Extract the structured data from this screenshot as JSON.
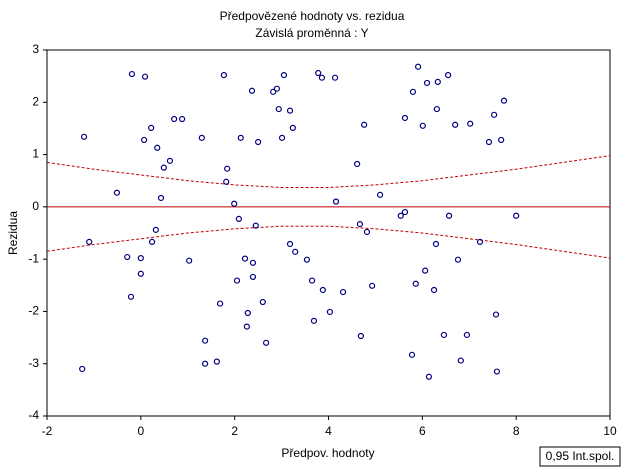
{
  "chart_data": {
    "type": "scatter",
    "title": "Předpovězené hodnoty vs. rezidua",
    "subtitle": "Závislá proměnná :  Y",
    "x_label": "Předpov. hodnoty",
    "y_label": "Rezidua",
    "xlim": [
      -2,
      10
    ],
    "xticks": [
      -2,
      0,
      2,
      4,
      6,
      8,
      10
    ],
    "ylim": [
      -4,
      3
    ],
    "yticks": [
      -4,
      -3,
      -2,
      -1,
      0,
      1,
      2,
      3
    ],
    "color": "#000080",
    "x": [
      -1.21,
      -1.1,
      -1.25,
      -0.51,
      -0.29,
      -0.21,
      -0.19,
      0.09,
      0.07,
      0.0,
      0.0,
      0.22,
      0.35,
      0.49,
      0.43,
      0.32,
      0.24,
      0.62,
      0.71,
      0.88,
      1.03,
      1.3,
      1.37,
      1.37,
      1.62,
      1.69,
      1.77,
      1.84,
      1.82,
      1.99,
      2.05,
      2.09,
      2.13,
      2.22,
      2.28,
      2.26,
      2.37,
      2.39,
      2.39,
      2.45,
      2.5,
      2.6,
      2.67,
      2.82,
      2.9,
      2.94,
      3.01,
      3.05,
      3.18,
      3.18,
      3.24,
      3.29,
      3.54,
      3.65,
      3.69,
      3.78,
      3.86,
      3.88,
      4.03,
      4.14,
      4.16,
      4.31,
      4.61,
      4.67,
      4.69,
      4.76,
      4.82,
      4.93,
      5.1,
      5.54,
      5.63,
      5.63,
      5.78,
      5.8,
      5.86,
      5.91,
      6.01,
      6.06,
      6.1,
      6.14,
      6.25,
      6.29,
      6.31,
      6.33,
      6.46,
      6.55,
      6.57,
      6.7,
      6.76,
      6.82,
      6.95,
      7.02,
      7.23,
      7.42,
      7.53,
      7.57,
      7.59,
      7.68,
      7.74,
      8.0
    ],
    "y": [
      1.34,
      -0.67,
      -3.1,
      0.27,
      -0.96,
      -1.72,
      2.54,
      2.49,
      1.28,
      -0.98,
      -1.28,
      1.51,
      1.13,
      0.75,
      0.17,
      -0.44,
      -0.67,
      0.88,
      1.68,
      1.68,
      -1.03,
      1.32,
      -2.56,
      -3.0,
      -2.96,
      -1.85,
      2.52,
      0.73,
      0.48,
      0.06,
      -1.41,
      -0.23,
      1.32,
      -0.99,
      -2.03,
      -2.29,
      2.22,
      -1.07,
      -1.34,
      -0.36,
      1.24,
      -1.82,
      -2.6,
      2.2,
      2.26,
      1.87,
      1.32,
      2.52,
      -0.71,
      1.84,
      1.51,
      -0.86,
      -1.01,
      -1.41,
      -2.18,
      2.56,
      2.47,
      -1.59,
      -2.01,
      2.47,
      0.1,
      -1.63,
      0.82,
      -0.33,
      -2.47,
      1.57,
      -0.48,
      -1.51,
      0.23,
      -0.17,
      -0.1,
      1.7,
      -2.83,
      2.2,
      -1.47,
      2.68,
      1.55,
      -1.22,
      2.37,
      -3.25,
      -1.59,
      -0.71,
      1.87,
      2.39,
      -2.45,
      2.52,
      -0.17,
      1.57,
      -1.01,
      -2.94,
      -2.45,
      1.59,
      -0.67,
      1.24,
      1.76,
      -2.06,
      -3.15,
      1.28,
      2.03,
      -0.17
    ],
    "fit": {
      "color": "#c00000",
      "x": [
        -2,
        10
      ],
      "values": [
        0,
        0
      ]
    },
    "confidence_band": {
      "label": "0,95 Int.spol.",
      "color": "#c00000",
      "x": [
        -2,
        -1,
        0,
        1,
        2,
        3,
        4,
        5,
        6,
        7,
        8,
        9,
        10
      ],
      "upper": [
        0.85,
        0.72,
        0.61,
        0.5,
        0.42,
        0.37,
        0.37,
        0.42,
        0.5,
        0.61,
        0.72,
        0.85,
        0.98
      ],
      "lower": [
        -0.85,
        -0.72,
        -0.61,
        -0.5,
        -0.42,
        -0.37,
        -0.37,
        -0.42,
        -0.5,
        -0.61,
        -0.72,
        -0.85,
        -0.98
      ]
    }
  }
}
